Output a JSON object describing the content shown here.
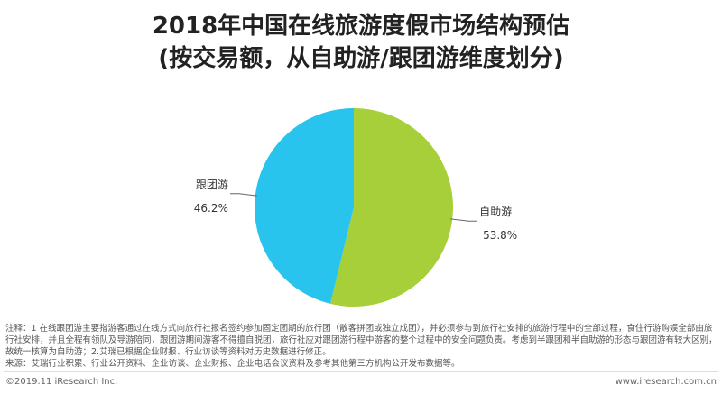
{
  "chart_data": {
    "type": "pie",
    "title": "2018年中国在线旅游度假市场结构预估",
    "subtitle": "(按交易额，从自助游/跟团游维度划分)",
    "categories": [
      "自助游",
      "跟团游"
    ],
    "values": [
      53.8,
      46.2
    ],
    "value_labels": [
      "53.8%",
      "46.2%"
    ],
    "colors": [
      "#a6cf3a",
      "#29c4ee"
    ],
    "note": "注释：1 在线跟团游主要指游客通过在线方式向旅行社报名签约参加固定团期的旅行团（散客拼团或独立成团），并必须参与到旅行社安排的旅游行程中的全部过程，食住行游购娱全部由旅行社安排，并且全程有领队及导游陪同，跟团游期间游客不得擅自脱团，旅行社应对跟团游行程中游客的整个过程中的安全问题负责。考虑到半跟团和半自助游的形态与跟团游有较大区别，故统一核算为自助游；2.艾瑞已根据企业财报、行业访谈等资料对历史数据进行修正。",
    "source": "来源：艾瑞行业积累、行业公开资料、企业访谈、企业财报、企业电话会议资料及参考其他第三方机构公开发布数据等。",
    "footer_left": "©2019.11 iResearch Inc.",
    "footer_right": "www.iresearch.com.cn"
  }
}
